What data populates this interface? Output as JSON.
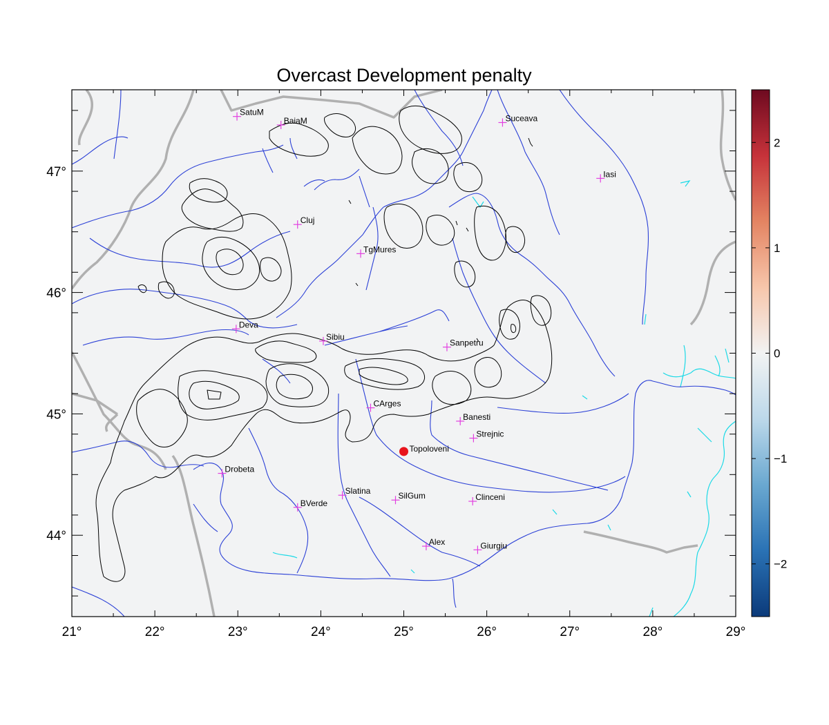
{
  "title": "Overcast Development penalty",
  "map": {
    "lon_range": [
      21,
      29
    ],
    "lat_range": [
      43.33,
      47.67
    ],
    "lon_ticks": [
      {
        "value": 21,
        "label": "21°"
      },
      {
        "value": 22,
        "label": "22°"
      },
      {
        "value": 23,
        "label": "23°"
      },
      {
        "value": 24,
        "label": "24°"
      },
      {
        "value": 25,
        "label": "25°"
      },
      {
        "value": 26,
        "label": "26°"
      },
      {
        "value": 27,
        "label": "27°"
      },
      {
        "value": 28,
        "label": "28°"
      },
      {
        "value": 29,
        "label": "29°"
      }
    ],
    "lat_ticks": [
      {
        "value": 44,
        "label": "44°"
      },
      {
        "value": 45,
        "label": "45°"
      },
      {
        "value": 46,
        "label": "46°"
      },
      {
        "value": 47,
        "label": "47°"
      }
    ],
    "background_color": "#f2f3f4",
    "river_color": "#2a3fd6",
    "border_color": "#b0b0b0",
    "coast_lake_color": "#1ad9e6",
    "contour_color": "#000000",
    "city_marker_color": "#e23fe0",
    "highlight_color": "#e8141c"
  },
  "cities": [
    {
      "name": "SatuM",
      "lon": 22.99,
      "lat": 47.45
    },
    {
      "name": "BaiaM",
      "lon": 23.52,
      "lat": 47.38
    },
    {
      "name": "Suceava",
      "lon": 26.19,
      "lat": 47.4
    },
    {
      "name": "Iasi",
      "lon": 27.37,
      "lat": 46.94
    },
    {
      "name": "Cluj",
      "lon": 23.72,
      "lat": 46.56
    },
    {
      "name": "TgMures",
      "lon": 24.48,
      "lat": 46.32
    },
    {
      "name": "Deva",
      "lon": 22.98,
      "lat": 45.7
    },
    {
      "name": "Sibiu",
      "lon": 24.03,
      "lat": 45.6
    },
    {
      "name": "Sanpetru",
      "lon": 25.52,
      "lat": 45.55
    },
    {
      "name": "CArges",
      "lon": 24.6,
      "lat": 45.05
    },
    {
      "name": "Banesti",
      "lon": 25.68,
      "lat": 44.94
    },
    {
      "name": "Strejnic",
      "lon": 25.84,
      "lat": 44.8
    },
    {
      "name": "Drobeta",
      "lon": 22.81,
      "lat": 44.51
    },
    {
      "name": "Slatina",
      "lon": 24.26,
      "lat": 44.33
    },
    {
      "name": "SilGum",
      "lon": 24.9,
      "lat": 44.29
    },
    {
      "name": "Clinceni",
      "lon": 25.83,
      "lat": 44.28
    },
    {
      "name": "BVerde",
      "lon": 23.72,
      "lat": 44.23
    },
    {
      "name": "Alex",
      "lon": 25.27,
      "lat": 43.91
    },
    {
      "name": "Giurgiu",
      "lon": 25.89,
      "lat": 43.88
    }
  ],
  "highlight": {
    "name": "Topoloveni",
    "lon": 25.0,
    "lat": 44.69
  },
  "colorbar": {
    "range": [
      -2.5,
      2.5
    ],
    "ticks": [
      {
        "value": 2,
        "label": "2"
      },
      {
        "value": 1,
        "label": "1"
      },
      {
        "value": 0,
        "label": "0"
      },
      {
        "value": -1,
        "label": "−1"
      },
      {
        "value": -2,
        "label": "−2"
      }
    ],
    "colors": [
      "#0b3a7a",
      "#2a72b5",
      "#6aa8d0",
      "#bcd8ea",
      "#f2f3f3",
      "#f7c6ab",
      "#e38462",
      "#c6323a",
      "#6e0a20"
    ]
  }
}
